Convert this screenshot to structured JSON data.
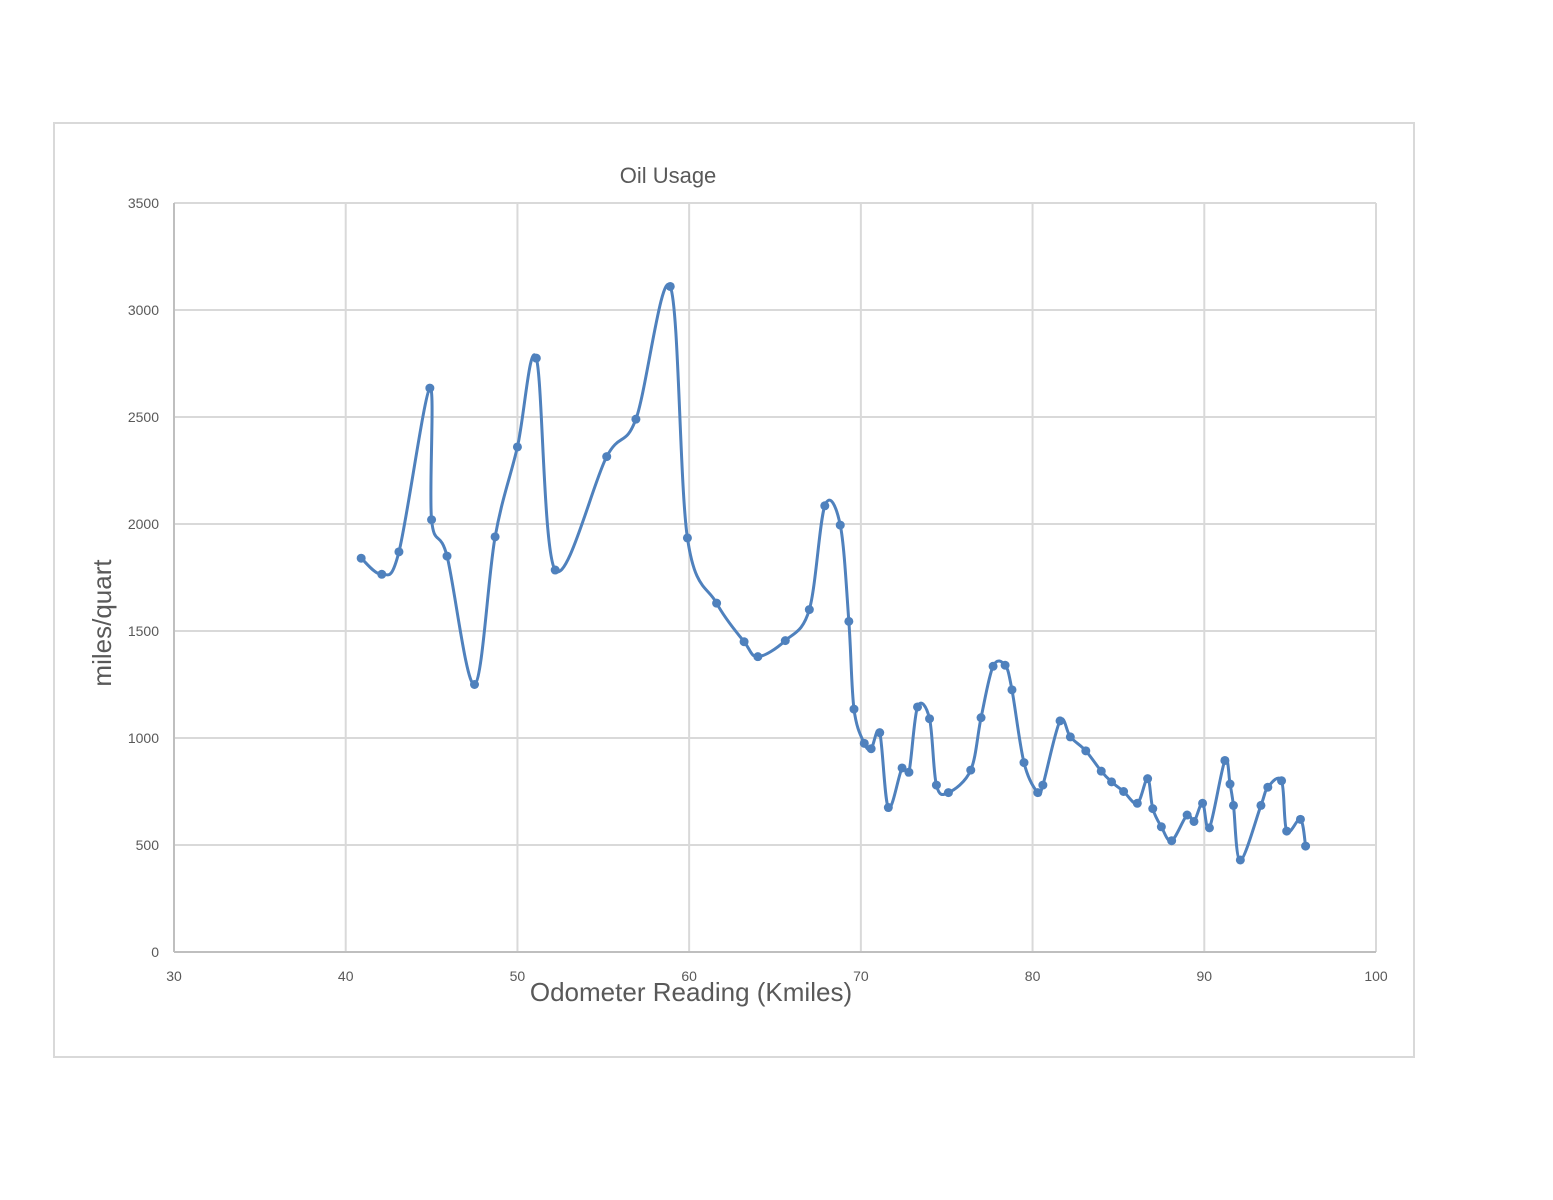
{
  "chart_data": {
    "type": "scatter",
    "title": "Oil Usage",
    "xlabel": "Odometer Reading (Kmiles)",
    "ylabel": "miles/quart",
    "xlim": [
      30,
      100
    ],
    "ylim": [
      0,
      3500
    ],
    "x_ticks": [
      30,
      40,
      50,
      60,
      70,
      80,
      90,
      100
    ],
    "y_ticks": [
      0,
      500,
      1000,
      1500,
      2000,
      2500,
      3000,
      3500
    ],
    "grid": true,
    "legend": "none",
    "smooth_line": true,
    "color": "#4f81bd",
    "series": [
      {
        "x": [
          40.9,
          42.1,
          43.1,
          44.9,
          45.0,
          45.9,
          47.5,
          48.7,
          50.0,
          51.1,
          52.2,
          55.2,
          56.9,
          58.9,
          59.9,
          61.6,
          63.2,
          64.0,
          65.6,
          67.0,
          67.9,
          68.8,
          69.3,
          69.6,
          70.2,
          70.6,
          71.1,
          71.6,
          72.4,
          72.8,
          73.3,
          74.0,
          74.4,
          75.1,
          76.4,
          77.0,
          77.7,
          78.4,
          78.8,
          79.5,
          80.3,
          80.6,
          81.6,
          82.2,
          83.1,
          84.0,
          84.6,
          85.3,
          86.1,
          86.7,
          87.0,
          87.5,
          88.1,
          89.0,
          89.4,
          89.9,
          90.3,
          91.2,
          91.5,
          91.7,
          92.1,
          93.3,
          93.7,
          94.5,
          94.8,
          95.6,
          95.9
        ],
        "y": [
          1840,
          1765,
          1870,
          2635,
          2020,
          1850,
          1250,
          1940,
          2360,
          2775,
          1785,
          2315,
          2490,
          3110,
          1935,
          1630,
          1450,
          1380,
          1455,
          1600,
          2085,
          1995,
          1545,
          1135,
          975,
          950,
          1025,
          675,
          860,
          840,
          1145,
          1090,
          780,
          745,
          850,
          1095,
          1335,
          1340,
          1225,
          885,
          745,
          780,
          1080,
          1005,
          940,
          845,
          795,
          750,
          695,
          810,
          670,
          585,
          520,
          640,
          610,
          695,
          580,
          895,
          785,
          685,
          430,
          685,
          770,
          800,
          565,
          620,
          495
        ]
      }
    ]
  }
}
